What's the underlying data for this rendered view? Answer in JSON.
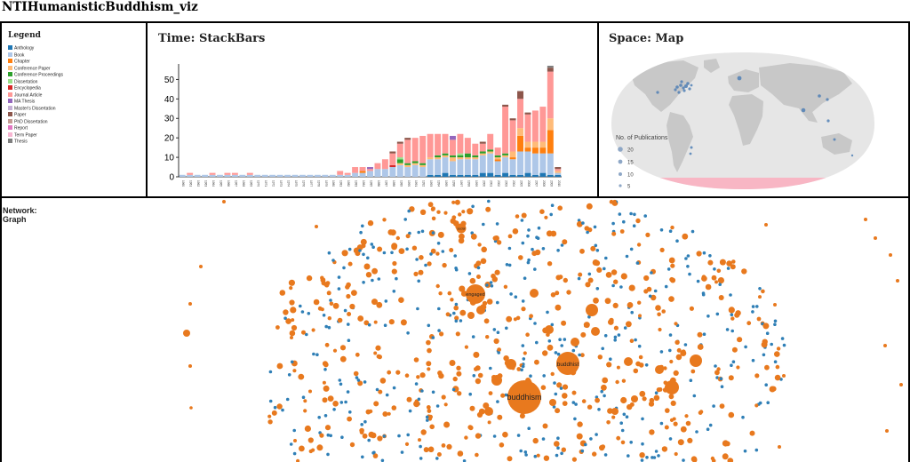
{
  "page": {
    "title": "NTIHumanisticBuddhism_viz"
  },
  "legend": {
    "title": "Legend",
    "items": [
      {
        "label": "Anthology",
        "color": "#1f77b4"
      },
      {
        "label": "Book",
        "color": "#aec7e8"
      },
      {
        "label": "Chapter",
        "color": "#ff7f0e"
      },
      {
        "label": "Conference Paper",
        "color": "#ffbb78"
      },
      {
        "label": "Conference Proceedings",
        "color": "#2ca02c"
      },
      {
        "label": "Dissertation",
        "color": "#98df8a"
      },
      {
        "label": "Encyclopedia",
        "color": "#d62728"
      },
      {
        "label": "Journal Article",
        "color": "#ff9896"
      },
      {
        "label": "MA Thesis",
        "color": "#9467bd"
      },
      {
        "label": "Master's Dissertation",
        "color": "#c5b0d5"
      },
      {
        "label": "Paper",
        "color": "#8c564b"
      },
      {
        "label": "PhD Dissertation",
        "color": "#c49c94"
      },
      {
        "label": "Report",
        "color": "#e377c2"
      },
      {
        "label": "Term Paper",
        "color": "#f7b6d2"
      },
      {
        "label": "Thesis",
        "color": "#7f7f7f"
      }
    ]
  },
  "time": {
    "title": "Time: StackBars"
  },
  "space": {
    "title": "Space: Map",
    "size_legend": {
      "title": "No. of Publications",
      "values": [
        "20",
        "15",
        "10",
        "5"
      ]
    }
  },
  "network": {
    "title_line1": "Network:",
    "title_line2": "Graph",
    "node_labels": [
      {
        "label": "buddhism",
        "size": "large"
      },
      {
        "label": "buddhist",
        "size": "medium"
      },
      {
        "label": "engaged",
        "size": "medium"
      },
      {
        "label": "social",
        "size": "small"
      }
    ]
  },
  "chart_data": [
    {
      "type": "bar",
      "stacked": true,
      "title": "Time: StackBars",
      "ylim": [
        0,
        57
      ],
      "yticks": [
        0,
        10,
        20,
        30,
        40,
        50
      ],
      "categories": [
        "1960",
        "1961",
        "1962",
        "1963",
        "1964",
        "1965",
        "1966",
        "1967",
        "1968",
        "1969",
        "1970",
        "1971",
        "1972",
        "1973",
        "1974",
        "1975",
        "1976",
        "1977",
        "1978",
        "1979",
        "1980",
        "1981",
        "1982",
        "1983",
        "1984",
        "1985",
        "1986",
        "1987",
        "1988",
        "1989",
        "1990",
        "1991",
        "1992",
        "1993",
        "1994",
        "1995",
        "1996",
        "1997",
        "1998",
        "1999",
        "2000",
        "2001",
        "2002",
        "2003",
        "2004",
        "2005",
        "2006",
        "2007",
        "2008",
        "2009",
        "2010"
      ],
      "series": [
        {
          "name": "Anthology",
          "color": "#1f77b4",
          "values": [
            0,
            0,
            0,
            0,
            0,
            0,
            0,
            0,
            0,
            0,
            0,
            0,
            0,
            0,
            0,
            0,
            0,
            0,
            0,
            0,
            0,
            0,
            0,
            0,
            0,
            0,
            0,
            0,
            0,
            0,
            0,
            0,
            0,
            1,
            1,
            2,
            1,
            1,
            1,
            1,
            2,
            2,
            1,
            2,
            1,
            1,
            2,
            1,
            2,
            1,
            1
          ]
        },
        {
          "name": "Book",
          "color": "#aec7e8",
          "values": [
            1,
            1,
            1,
            1,
            1,
            1,
            1,
            1,
            1,
            1,
            1,
            1,
            1,
            1,
            1,
            1,
            1,
            1,
            1,
            1,
            1,
            1,
            1,
            2,
            2,
            3,
            4,
            4,
            5,
            6,
            5,
            6,
            5,
            8,
            8,
            8,
            7,
            8,
            8,
            8,
            9,
            10,
            7,
            8,
            8,
            12,
            11,
            11,
            10,
            11,
            1
          ]
        },
        {
          "name": "Chapter",
          "color": "#ff7f0e",
          "values": [
            0,
            0,
            0,
            0,
            0,
            0,
            0,
            0,
            0,
            0,
            0,
            0,
            0,
            0,
            0,
            0,
            0,
            0,
            0,
            0,
            0,
            0,
            0,
            0,
            1,
            0,
            0,
            0,
            0,
            0,
            0,
            0,
            0,
            0,
            0,
            0,
            0,
            0,
            0,
            0,
            0,
            0,
            1,
            0,
            1,
            8,
            2,
            3,
            3,
            12,
            0
          ]
        },
        {
          "name": "Conference Paper",
          "color": "#ffbb78",
          "values": [
            0,
            0,
            0,
            0,
            0,
            0,
            0,
            0,
            0,
            0,
            0,
            0,
            0,
            0,
            0,
            0,
            0,
            0,
            0,
            0,
            0,
            0,
            0,
            0,
            0,
            0,
            0,
            0,
            0,
            1,
            1,
            1,
            1,
            1,
            1,
            1,
            2,
            1,
            1,
            1,
            1,
            1,
            1,
            1,
            3,
            4,
            3,
            3,
            3,
            6,
            1
          ]
        },
        {
          "name": "Conference Proceedings",
          "color": "#2ca02c",
          "values": [
            0,
            0,
            0,
            0,
            0,
            0,
            0,
            0,
            0,
            0,
            0,
            0,
            0,
            0,
            0,
            0,
            0,
            0,
            0,
            0,
            0,
            0,
            0,
            0,
            0,
            0,
            0,
            0,
            0,
            2,
            1,
            1,
            1,
            0,
            1,
            1,
            1,
            1,
            2,
            1,
            1,
            1,
            1,
            1,
            0,
            0,
            0,
            0,
            0,
            0,
            0
          ]
        },
        {
          "name": "Dissertation",
          "color": "#98df8a",
          "values": [
            0,
            0,
            0,
            0,
            0,
            0,
            0,
            0,
            0,
            0,
            0,
            0,
            0,
            0,
            0,
            0,
            0,
            0,
            0,
            0,
            0,
            0,
            0,
            0,
            0,
            0,
            0,
            0,
            0,
            1,
            0,
            0,
            0,
            0,
            0,
            0,
            0,
            1,
            0,
            0,
            0,
            0,
            0,
            0,
            0,
            0,
            0,
            0,
            0,
            0,
            0
          ]
        },
        {
          "name": "Encyclopedia",
          "color": "#d62728",
          "values": [
            0,
            0,
            0,
            0,
            0,
            0,
            0,
            0,
            0,
            0,
            0,
            0,
            0,
            0,
            0,
            0,
            0,
            0,
            0,
            0,
            0,
            0,
            0,
            0,
            0,
            0,
            0,
            0,
            1,
            0,
            0,
            0,
            0,
            0,
            0,
            0,
            0,
            0,
            0,
            0,
            0,
            0,
            0,
            0,
            0,
            0,
            0,
            0,
            0,
            0,
            0
          ]
        },
        {
          "name": "Journal Article",
          "color": "#ff9896",
          "values": [
            0,
            1,
            0,
            0,
            1,
            0,
            1,
            1,
            0,
            1,
            0,
            0,
            0,
            0,
            0,
            0,
            0,
            0,
            0,
            0,
            0,
            2,
            1,
            3,
            2,
            1,
            3,
            5,
            6,
            7,
            12,
            12,
            14,
            12,
            11,
            10,
            8,
            10,
            8,
            6,
            4,
            8,
            4,
            24,
            16,
            15,
            14,
            16,
            18,
            24,
            1
          ]
        },
        {
          "name": "MA Thesis",
          "color": "#9467bd",
          "values": [
            0,
            0,
            0,
            0,
            0,
            0,
            0,
            0,
            0,
            0,
            0,
            0,
            0,
            0,
            0,
            0,
            0,
            0,
            0,
            0,
            0,
            0,
            0,
            0,
            0,
            1,
            0,
            0,
            0,
            0,
            0,
            0,
            0,
            0,
            0,
            0,
            2,
            0,
            0,
            0,
            0,
            0,
            0,
            0,
            0,
            0,
            0,
            0,
            0,
            0,
            0
          ]
        },
        {
          "name": "Master's Dissertation",
          "color": "#c5b0d5",
          "values": [
            0,
            0,
            0,
            0,
            0,
            0,
            0,
            0,
            0,
            0,
            0,
            0,
            0,
            0,
            0,
            0,
            0,
            0,
            0,
            0,
            0,
            0,
            0,
            0,
            0,
            0,
            0,
            0,
            0,
            0,
            0,
            0,
            0,
            0,
            0,
            0,
            0,
            0,
            0,
            0,
            0,
            0,
            0,
            0,
            0,
            0,
            0,
            0,
            0,
            0,
            0
          ]
        },
        {
          "name": "Paper",
          "color": "#8c564b",
          "values": [
            0,
            0,
            0,
            0,
            0,
            0,
            0,
            0,
            0,
            0,
            0,
            0,
            0,
            0,
            0,
            0,
            0,
            0,
            0,
            0,
            0,
            0,
            0,
            0,
            0,
            0,
            0,
            0,
            1,
            1,
            1,
            0,
            0,
            0,
            0,
            0,
            0,
            0,
            0,
            0,
            1,
            0,
            0,
            1,
            1,
            4,
            1,
            0,
            0,
            2,
            1
          ]
        },
        {
          "name": "PhD Dissertation",
          "color": "#c49c94",
          "values": [
            0,
            0,
            0,
            0,
            0,
            0,
            0,
            0,
            0,
            0,
            0,
            0,
            0,
            0,
            0,
            0,
            0,
            0,
            0,
            0,
            0,
            0,
            0,
            0,
            0,
            0,
            0,
            0,
            0,
            0,
            0,
            0,
            0,
            0,
            0,
            0,
            0,
            0,
            0,
            0,
            0,
            0,
            0,
            0,
            0,
            0,
            0,
            0,
            0,
            0,
            0
          ]
        },
        {
          "name": "Report",
          "color": "#e377c2",
          "values": [
            0,
            0,
            0,
            0,
            0,
            0,
            0,
            0,
            0,
            0,
            0,
            0,
            0,
            0,
            0,
            0,
            0,
            0,
            0,
            0,
            0,
            0,
            0,
            0,
            0,
            0,
            0,
            0,
            0,
            0,
            0,
            0,
            0,
            0,
            0,
            0,
            0,
            0,
            0,
            0,
            0,
            0,
            0,
            0,
            0,
            0,
            0,
            0,
            0,
            0,
            0
          ]
        },
        {
          "name": "Term Paper",
          "color": "#f7b6d2",
          "values": [
            0,
            0,
            0,
            0,
            0,
            0,
            0,
            0,
            0,
            0,
            0,
            0,
            0,
            0,
            0,
            0,
            0,
            0,
            0,
            0,
            0,
            0,
            0,
            0,
            0,
            0,
            0,
            0,
            0,
            0,
            0,
            0,
            0,
            0,
            0,
            0,
            0,
            0,
            0,
            0,
            0,
            0,
            0,
            0,
            0,
            0,
            0,
            0,
            0,
            0,
            0
          ]
        },
        {
          "name": "Thesis",
          "color": "#7f7f7f",
          "values": [
            0,
            0,
            0,
            0,
            0,
            0,
            0,
            0,
            0,
            0,
            0,
            0,
            0,
            0,
            0,
            0,
            0,
            0,
            0,
            0,
            0,
            0,
            0,
            0,
            0,
            0,
            0,
            0,
            0,
            0,
            0,
            0,
            0,
            0,
            0,
            0,
            0,
            0,
            0,
            0,
            0,
            0,
            0,
            0,
            0,
            0,
            0,
            0,
            0,
            1,
            0
          ]
        }
      ]
    }
  ]
}
